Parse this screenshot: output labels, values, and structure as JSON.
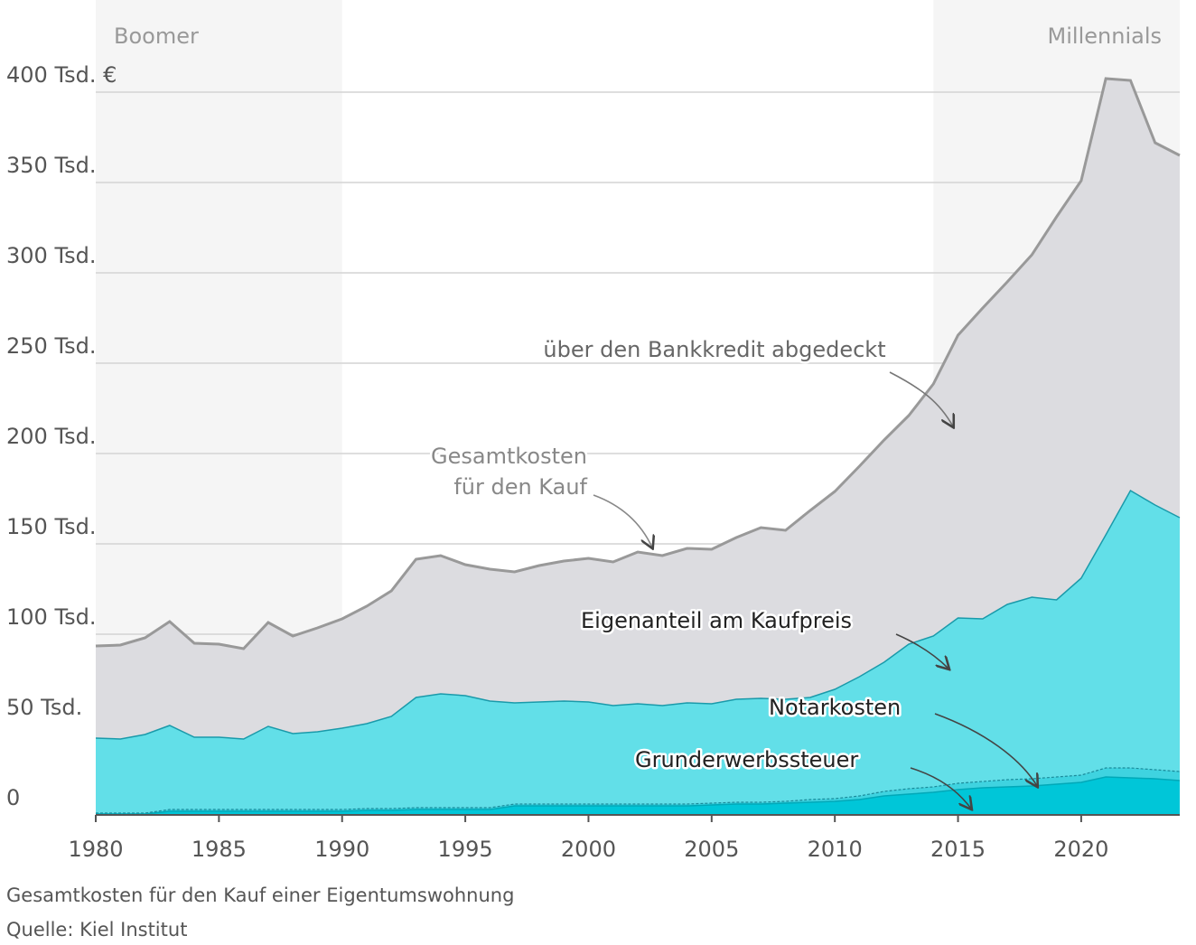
{
  "chart_data": {
    "type": "area",
    "x": [
      1980,
      1981,
      1982,
      1983,
      1984,
      1985,
      1986,
      1987,
      1988,
      1989,
      1990,
      1991,
      1992,
      1993,
      1994,
      1995,
      1996,
      1997,
      1998,
      1999,
      2000,
      2001,
      2002,
      2003,
      2004,
      2005,
      2006,
      2007,
      2008,
      2009,
      2010,
      2011,
      2012,
      2013,
      2014,
      2015,
      2016,
      2017,
      2018,
      2019,
      2020,
      2021,
      2022,
      2023,
      2024
    ],
    "xlim": [
      1980,
      2024
    ],
    "xticks": [
      1980,
      1985,
      1990,
      1995,
      2000,
      2005,
      2010,
      2015,
      2020
    ],
    "ylim": [
      0,
      400
    ],
    "yticks": [
      0,
      {
        "value": 50,
        "label": "50 Tsd."
      },
      {
        "value": 100,
        "label": "100 Tsd."
      },
      {
        "value": 150,
        "label": "150 Tsd."
      },
      {
        "value": 200,
        "label": "200 Tsd."
      },
      {
        "value": 250,
        "label": "250 Tsd."
      },
      {
        "value": 300,
        "label": "300 Tsd."
      },
      {
        "value": 350,
        "label": "350 Tsd."
      },
      {
        "value": 400,
        "label": "400 Tsd. €"
      }
    ],
    "grid": true,
    "bands": [
      {
        "label": "Boomer",
        "start": 1980,
        "end": 1990
      },
      {
        "label": "Millennials",
        "start": 2014,
        "end": 2024
      }
    ],
    "series": [
      {
        "color": "#dcdce0",
        "line": "#999999",
        "values": [
          93.5,
          94,
          98,
          107,
          95,
          94.5,
          92,
          106.5,
          99,
          103.5,
          108.5,
          115.5,
          124,
          141.5,
          143.5,
          138.5,
          136,
          134.5,
          138,
          140.5,
          142,
          140,
          145.5,
          143.5,
          147.5,
          147,
          153.5,
          159,
          157.5,
          168.5,
          179,
          193,
          207.5,
          221,
          238.5,
          265.5,
          280.5,
          295,
          310,
          331,
          351,
          407.5,
          406.5,
          372,
          365
        ]
      },
      {
        "name": "Eigenanteil am Kaufpreis",
        "color": "#62dfe8",
        "line": "#1a9aaa",
        "values": [
          42.5,
          42,
          44.5,
          49.5,
          43,
          43,
          42,
          49,
          45,
          46,
          48,
          50.5,
          54.5,
          65,
          67,
          66,
          63,
          62,
          62.5,
          63,
          62.5,
          60.5,
          61.5,
          60.5,
          62,
          61.5,
          64,
          64.5,
          64,
          65,
          69.5,
          76.5,
          84.5,
          94.5,
          99,
          109,
          108.5,
          116.5,
          120.5,
          119,
          131,
          155,
          179.5,
          171.5,
          164.5
        ]
      },
      {
        "name": "Notarkosten",
        "color": "#3fd3e0",
        "line": "#1a8a9a",
        "values": [
          1,
          1,
          1,
          3,
          3,
          3,
          3,
          3,
          3,
          3,
          3,
          3.5,
          3.5,
          4,
          4,
          4,
          4,
          6,
          6,
          6,
          6,
          6,
          6,
          6,
          6,
          6.5,
          7,
          7,
          7.5,
          8.5,
          9,
          10.5,
          13,
          14.5,
          15.5,
          17.5,
          18.5,
          19.5,
          20,
          21,
          22,
          26,
          26,
          25,
          24
        ]
      },
      {
        "name": "Grunderwerbssteuer",
        "color": "#00c6d8",
        "line": "#00a8b8",
        "values": [
          0.5,
          0.5,
          0.5,
          2,
          2,
          2,
          2,
          2,
          2,
          2,
          2,
          2.5,
          2.5,
          3,
          3,
          3,
          3,
          5,
          5,
          5,
          5,
          5,
          5,
          5,
          5,
          5.5,
          6,
          6,
          6.5,
          7,
          7.5,
          8.5,
          10.5,
          11.5,
          12.5,
          14,
          15,
          15.5,
          16,
          17,
          18,
          21,
          20.5,
          20,
          19
        ]
      }
    ],
    "annotations": {
      "total": [
        "Gesamtkosten",
        "für den Kauf"
      ],
      "credit": "über den Bankkredit abgedeckt"
    },
    "footer": [
      "Gesamtkosten für den Kauf einer Eigentumswohnung",
      "Quelle: Kiel Institut"
    ]
  }
}
